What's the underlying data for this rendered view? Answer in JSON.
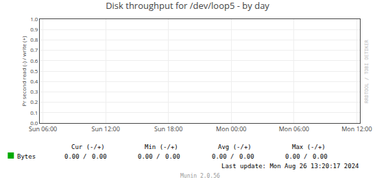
{
  "chart_data": {
    "type": "line",
    "title": "Disk throughput for /dev/loop5 - by day",
    "ylabel": "Pr second read (-) / write (+)",
    "series": [
      {
        "name": "Bytes",
        "color": "#00aa00",
        "values": []
      }
    ],
    "xlim": [
      -0.05,
      5.05
    ],
    "xticks": [
      {
        "value": 0,
        "label": "Sun 06:00"
      },
      {
        "value": 1,
        "label": "Sun 12:00"
      },
      {
        "value": 2,
        "label": "Sun 18:00"
      },
      {
        "value": 3,
        "label": "Mon 00:00"
      },
      {
        "value": 4,
        "label": "Mon 06:00"
      },
      {
        "value": 5,
        "label": "Mon 12:00"
      }
    ],
    "ylim": [
      0.0,
      1.0
    ],
    "yticks": [
      {
        "value": 0.0,
        "label": "0.0"
      },
      0.1,
      0.2,
      0.3,
      0.4,
      0.5,
      0.6,
      0.7,
      0.8,
      0.9,
      {
        "value": 1.0,
        "label": "1.0"
      }
    ],
    "grid": true,
    "annotations": [
      "Cur (-/+)",
      "Min (-/+)",
      "Avg (-/+)",
      "Max (-/+)",
      "0.00 /",
      "0.00",
      "0.00 /",
      "0.00",
      "0.00 /",
      "0.00",
      "0.00 /",
      "0.00",
      "Last update: Mon Aug 26 13:20:17 2024",
      "RRDTOOL / TOBI OETIKER",
      "Munin 2.0.56"
    ]
  }
}
